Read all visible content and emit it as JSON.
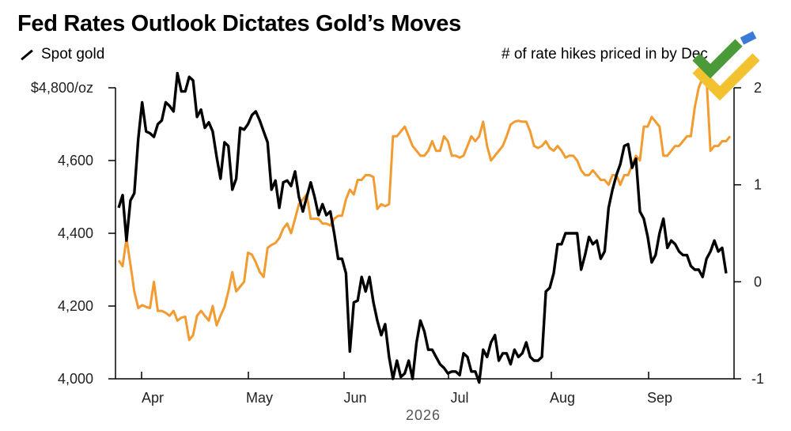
{
  "chart_data": {
    "type": "line",
    "title": "Fed Rates Outlook Dictates Gold’s Moves",
    "xlabel": "2026",
    "x_ticks": [
      "Apr",
      "May",
      "Jun",
      "Jul",
      "Aug",
      "Sep"
    ],
    "x_range": [
      0,
      155
    ],
    "y_left": {
      "label": "",
      "ticks": [
        "$4,800/oz",
        "4,600",
        "4,400",
        "4,200",
        "4,000"
      ],
      "tick_values": [
        4800,
        4600,
        4400,
        4200,
        4000
      ],
      "range": [
        4000,
        4800
      ]
    },
    "y_right": {
      "ticks": [
        "2",
        "1",
        "0",
        "-1"
      ],
      "tick_values": [
        2,
        1,
        0,
        -1
      ],
      "range": [
        -1,
        2
      ]
    },
    "grid": false,
    "legend": "top",
    "series": [
      {
        "name": "Spot gold",
        "color": "#000000",
        "axis": "left",
        "values": [
          4470,
          4505,
          4380,
          4490,
          4510,
          4660,
          4760,
          4680,
          4675,
          4665,
          4700,
          4710,
          4760,
          4750,
          4735,
          4840,
          4790,
          4790,
          4830,
          4820,
          4720,
          4740,
          4690,
          4705,
          4680,
          4610,
          4550,
          4650,
          4640,
          4520,
          4550,
          4690,
          4685,
          4700,
          4725,
          4735,
          4710,
          4680,
          4650,
          4520,
          4545,
          4470,
          4540,
          4545,
          4530,
          4570,
          4500,
          4460,
          4500,
          4540,
          4500,
          4450,
          4480,
          4450,
          4460,
          4400,
          4330,
          4330,
          4290,
          4075,
          4210,
          4215,
          4280,
          4240,
          4280,
          4210,
          4160,
          4120,
          4150,
          4060,
          4000,
          4050,
          4005,
          4015,
          4050,
          4000,
          4100,
          4160,
          4130,
          4080,
          4080,
          4060,
          4040,
          4030,
          4015,
          4020,
          4020,
          4010,
          4070,
          4060,
          4020,
          4020,
          3990,
          4080,
          4060,
          4100,
          4120,
          4050,
          4070,
          4070,
          4040,
          4080,
          4060,
          4070,
          4100,
          4060,
          4050,
          4050,
          4060,
          4240,
          4250,
          4290,
          4370,
          4370,
          4400,
          4400,
          4400,
          4400,
          4300,
          4340,
          4390,
          4370,
          4380,
          4330,
          4350,
          4470,
          4520,
          4560,
          4590,
          4640,
          4645,
          4580,
          4605,
          4460,
          4440,
          4390,
          4320,
          4340,
          4400,
          4440,
          4360,
          4380,
          4370,
          4350,
          4340,
          4340,
          4310,
          4300,
          4300,
          4280,
          4330,
          4350,
          4380,
          4350,
          4360,
          4290
        ]
      },
      {
        "name": "# of rate hikes priced in by Dec",
        "color": "#f29b30",
        "axis": "right",
        "values": [
          0.22,
          0.16,
          0.45,
          0.18,
          -0.1,
          -0.27,
          -0.24,
          -0.26,
          -0.27,
          0.0,
          -0.3,
          -0.3,
          -0.32,
          -0.35,
          -0.3,
          -0.4,
          -0.37,
          -0.36,
          -0.6,
          -0.55,
          -0.35,
          -0.3,
          -0.35,
          -0.4,
          -0.25,
          -0.45,
          -0.35,
          -0.26,
          -0.1,
          0.1,
          -0.1,
          -0.05,
          0.0,
          0.3,
          0.28,
          0.2,
          0.1,
          0.05,
          0.35,
          0.38,
          0.4,
          0.45,
          0.55,
          0.6,
          0.5,
          0.65,
          0.8,
          0.85,
          0.9,
          0.65,
          0.65,
          0.65,
          0.6,
          0.6,
          0.58,
          0.65,
          0.68,
          0.68,
          0.85,
          0.95,
          0.9,
          1.05,
          1.05,
          1.1,
          1.1,
          1.08,
          0.75,
          0.8,
          0.78,
          0.8,
          1.5,
          1.5,
          1.55,
          1.6,
          1.5,
          1.4,
          1.35,
          1.3,
          1.3,
          1.35,
          1.45,
          1.35,
          1.35,
          1.5,
          1.45,
          1.3,
          1.3,
          1.28,
          1.3,
          1.4,
          1.5,
          1.45,
          1.5,
          1.65,
          1.4,
          1.25,
          1.3,
          1.35,
          1.4,
          1.5,
          1.62,
          1.65,
          1.66,
          1.65,
          1.65,
          1.55,
          1.4,
          1.38,
          1.4,
          1.45,
          1.38,
          1.35,
          1.4,
          1.35,
          1.28,
          1.3,
          1.3,
          1.25,
          1.15,
          1.1,
          1.1,
          1.15,
          1.1,
          1.05,
          1.05,
          1.0,
          1.1,
          1.1,
          1.0,
          1.1,
          1.1,
          1.2,
          1.3,
          1.25,
          1.6,
          1.6,
          1.7,
          1.65,
          1.6,
          1.3,
          1.3,
          1.35,
          1.4,
          1.4,
          1.45,
          1.5,
          1.5,
          1.8,
          2.0,
          2.1,
          2.1,
          1.35,
          1.4,
          1.4,
          1.45,
          1.45,
          1.5
        ]
      }
    ]
  }
}
